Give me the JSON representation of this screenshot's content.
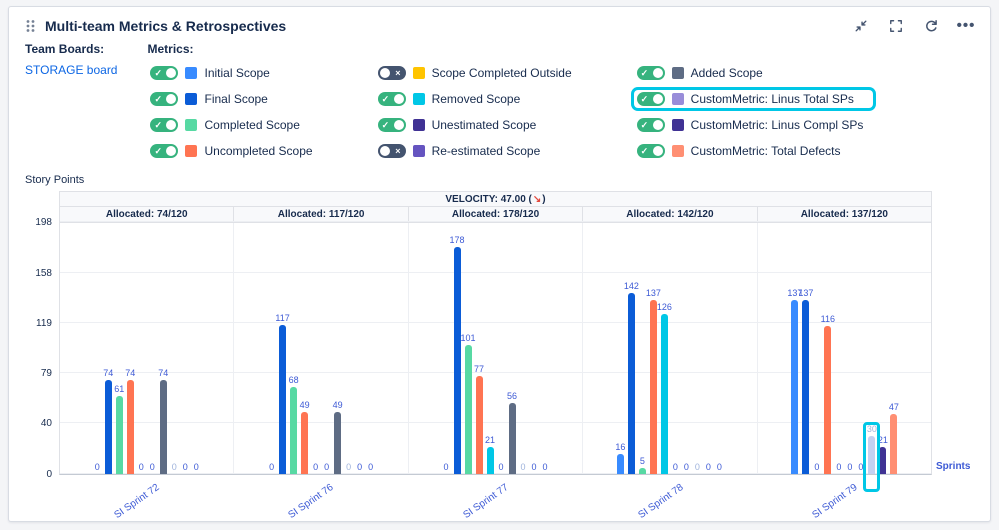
{
  "header": {
    "title": "Multi-team Metrics & Retrospectives",
    "icons": [
      "collapse-icon",
      "fullscreen-icon",
      "refresh-icon",
      "more-icon"
    ]
  },
  "team_boards": {
    "label": "Team Boards:",
    "board": "STORAGE board"
  },
  "metrics": {
    "label": "Metrics:",
    "items": [
      {
        "label": "Initial Scope",
        "color": "#388BFF",
        "on": true,
        "highlight": false
      },
      {
        "label": "Final Scope",
        "color": "#0B5CD7",
        "on": true,
        "highlight": false
      },
      {
        "label": "Completed Scope",
        "color": "#57D9A3",
        "on": true,
        "highlight": false
      },
      {
        "label": "Uncompleted Scope",
        "color": "#FF7452",
        "on": true,
        "highlight": false
      },
      {
        "label": "Scope Completed Outside",
        "color": "#FFC400",
        "on": false,
        "highlight": false
      },
      {
        "label": "Removed Scope",
        "color": "#00C7E6",
        "on": true,
        "highlight": false
      },
      {
        "label": "Unestimated Scope",
        "color": "#403294",
        "on": true,
        "highlight": false
      },
      {
        "label": "Re-estimated Scope",
        "color": "#6554C0",
        "on": false,
        "highlight": false
      },
      {
        "label": "Added Scope",
        "color": "#5E6C84",
        "on": true,
        "highlight": false
      },
      {
        "label": "CustomMetric: Linus Total SPs",
        "color": "#998DD9",
        "on": true,
        "highlight": true
      },
      {
        "label": "CustomMetric: Linus Compl SPs",
        "color": "#403294",
        "on": true,
        "highlight": false
      },
      {
        "label": "CustomMetric: Total Defects",
        "color": "#FF8F73",
        "on": true,
        "highlight": false
      }
    ]
  },
  "chart_data": {
    "type": "bar",
    "title": "Story Points",
    "xlabel": "Sprints",
    "velocity_label": "VELOCITY: 47.00",
    "velocity_arrow": "↘",
    "velocity_trend": "down",
    "allocations": [
      "Allocated: 74/120",
      "Allocated: 117/120",
      "Allocated: 178/120",
      "Allocated: 142/120",
      "Allocated: 137/120"
    ],
    "categories": [
      "SI Sprint 72",
      "SI Sprint 76",
      "SI Sprint 77",
      "SI Sprint 78",
      "SI Sprint 79"
    ],
    "y_ticks": [
      0,
      40,
      79,
      119,
      158,
      198
    ],
    "y_max": 198,
    "legend_position": "top",
    "grid": true,
    "series": [
      {
        "name": "Initial Scope",
        "color": "#388BFF",
        "values": [
          0,
          0,
          0,
          16,
          137
        ]
      },
      {
        "name": "Final Scope",
        "color": "#0B5CD7",
        "values": [
          74,
          117,
          178,
          142,
          137
        ]
      },
      {
        "name": "Completed Scope",
        "color": "#57D9A3",
        "values": [
          61,
          68,
          101,
          5,
          0
        ]
      },
      {
        "name": "Uncompleted Scope",
        "color": "#FF7452",
        "values": [
          74,
          49,
          77,
          137,
          116
        ]
      },
      {
        "name": "Removed Scope",
        "color": "#00C7E6",
        "values": [
          0,
          0,
          21,
          126,
          0
        ]
      },
      {
        "name": "Unestimated Scope",
        "color": "#403294",
        "values": [
          0,
          0,
          0,
          0,
          0
        ]
      },
      {
        "name": "Added Scope",
        "color": "#5E6C84",
        "values": [
          74,
          49,
          56,
          0,
          0
        ]
      },
      {
        "name": "CustomMetric: Linus Total SPs",
        "color": "#C5D1F1",
        "label_color": "#9FB3DC",
        "values": [
          0,
          0,
          0,
          0,
          30
        ]
      },
      {
        "name": "CustomMetric: Linus Compl SPs",
        "color": "#403294",
        "values": [
          0,
          0,
          0,
          0,
          21
        ]
      },
      {
        "name": "CustomMetric: Total Defects",
        "color": "#FF8F73",
        "values": [
          0,
          0,
          0,
          0,
          47
        ]
      }
    ],
    "highlight": {
      "sprint": 4,
      "series": 7
    }
  }
}
